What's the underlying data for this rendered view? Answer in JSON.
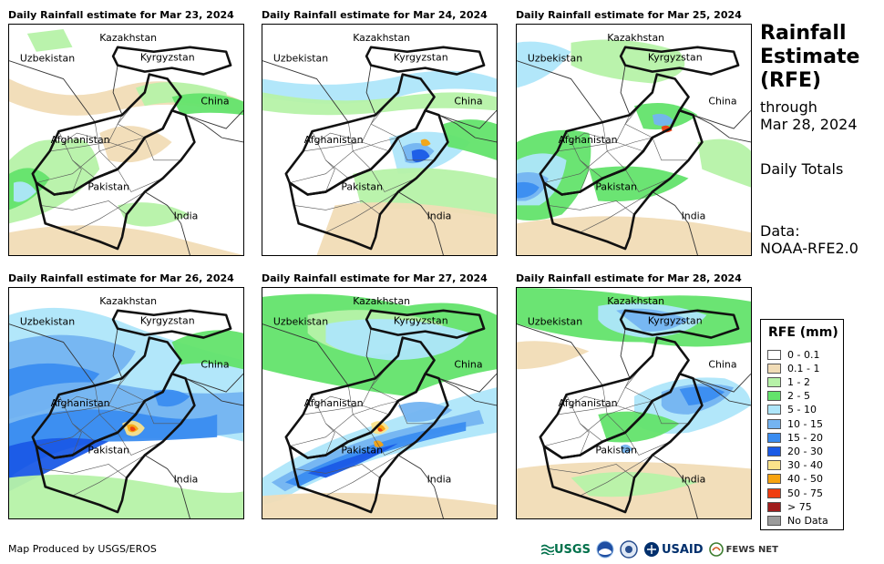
{
  "panels": [
    {
      "title": "Daily Rainfall estimate for Mar 23, 2024",
      "rain": "r23"
    },
    {
      "title": "Daily Rainfall estimate for Mar 24, 2024",
      "rain": "r24"
    },
    {
      "title": "Daily Rainfall estimate for Mar 25, 2024",
      "rain": "r25"
    },
    {
      "title": "Daily Rainfall estimate for Mar 26, 2024",
      "rain": "r26"
    },
    {
      "title": "Daily Rainfall estimate for Mar 27, 2024",
      "rain": "r27"
    },
    {
      "title": "Daily Rainfall estimate for Mar 28, 2024",
      "rain": "r28"
    }
  ],
  "countries": {
    "kazakhstan": "Kazakhstan",
    "uzbekistan": "Uzbekistan",
    "kyrgyzstan": "Kyrgyzstan",
    "china": "China",
    "afghanistan": "Afghanistan",
    "pakistan": "Pakistan",
    "india": "India"
  },
  "side": {
    "title_line1": "Rainfall",
    "title_line2": "Estimate",
    "title_line3": "(RFE)",
    "through": "through",
    "date": "Mar 28, 2024",
    "totals": "Daily Totals",
    "data_label": "Data:",
    "data_source": "NOAA-RFE2.0"
  },
  "legend": {
    "title": "RFE (mm)",
    "items": [
      {
        "label": "0 - 0.1",
        "color": "#ffffff"
      },
      {
        "label": "0.1 - 1",
        "color": "#f1dcb6"
      },
      {
        "label": "1 - 2",
        "color": "#b6f2a8"
      },
      {
        "label": "2 - 5",
        "color": "#63e36b"
      },
      {
        "label": "5 - 10",
        "color": "#aee6fa"
      },
      {
        "label": "10 - 15",
        "color": "#74b4f1"
      },
      {
        "label": "15 - 20",
        "color": "#3a8cf0"
      },
      {
        "label": "20 - 30",
        "color": "#1a5ae6"
      },
      {
        "label": "30 - 40",
        "color": "#fbe38a"
      },
      {
        "label": "40 - 50",
        "color": "#f7a30f"
      },
      {
        "label": "50 - 75",
        "color": "#ef3d10"
      },
      {
        "label": "> 75",
        "color": "#a01d1d"
      },
      {
        "label": "No Data",
        "color": "#9b9b9b"
      }
    ]
  },
  "credit": "Map Produced by USGS/EROS",
  "logos": {
    "usgs": "USGS",
    "usaid": "USAID",
    "fews": "FEWS NET"
  }
}
